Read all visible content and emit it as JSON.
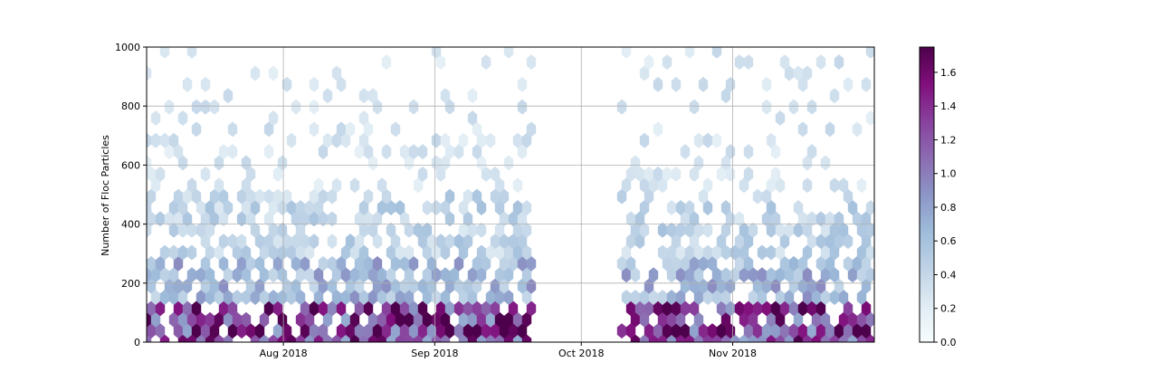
{
  "chart_data": {
    "type": "heatmap",
    "subtype": "hexbin",
    "title": "",
    "xlabel": "",
    "ylabel": "Number of Floc Particles",
    "ylim": [
      0,
      1000
    ],
    "xlim": [
      "2018-07-04",
      "2018-11-30"
    ],
    "grid": true,
    "x_ticks": [
      {
        "date": "2018-08-01",
        "label": "Aug 2018"
      },
      {
        "date": "2018-09-01",
        "label": "Sep 2018"
      },
      {
        "date": "2018-10-01",
        "label": "Oct 2018"
      },
      {
        "date": "2018-11-01",
        "label": "Nov 2018"
      }
    ],
    "y_ticks": [
      0,
      200,
      400,
      600,
      800,
      1000
    ],
    "colorbar": {
      "colormap": "BuPu",
      "min": 0.0,
      "max": 1.75,
      "ticks": [
        "0.0",
        "0.2",
        "0.4",
        "0.6",
        "0.8",
        "1.0",
        "1.2",
        "1.4",
        "1.6"
      ],
      "stops": [
        "#f7fcfd",
        "#e0ecf4",
        "#bfd3e6",
        "#9ebcda",
        "#8c96c6",
        "#8c6bb1",
        "#88419d",
        "#810f7c",
        "#4d004b"
      ]
    },
    "segments": [
      {
        "start": "2018-07-04",
        "end": "2018-09-21",
        "ymax_dense": 500,
        "ymax_sparse": 1000
      },
      {
        "start": "2018-10-09",
        "end": "2018-11-30",
        "ymax_dense": 450,
        "ymax_sparse": 1000
      }
    ],
    "density_bands": [
      {
        "ymin": 0,
        "ymax": 150,
        "value": 1.35
      },
      {
        "ymin": 150,
        "ymax": 300,
        "value": 0.7
      },
      {
        "ymin": 300,
        "ymax": 500,
        "value": 0.45
      },
      {
        "ymin": 500,
        "ymax": 1000,
        "value": 0.3
      }
    ],
    "peak_value": 1.75
  }
}
